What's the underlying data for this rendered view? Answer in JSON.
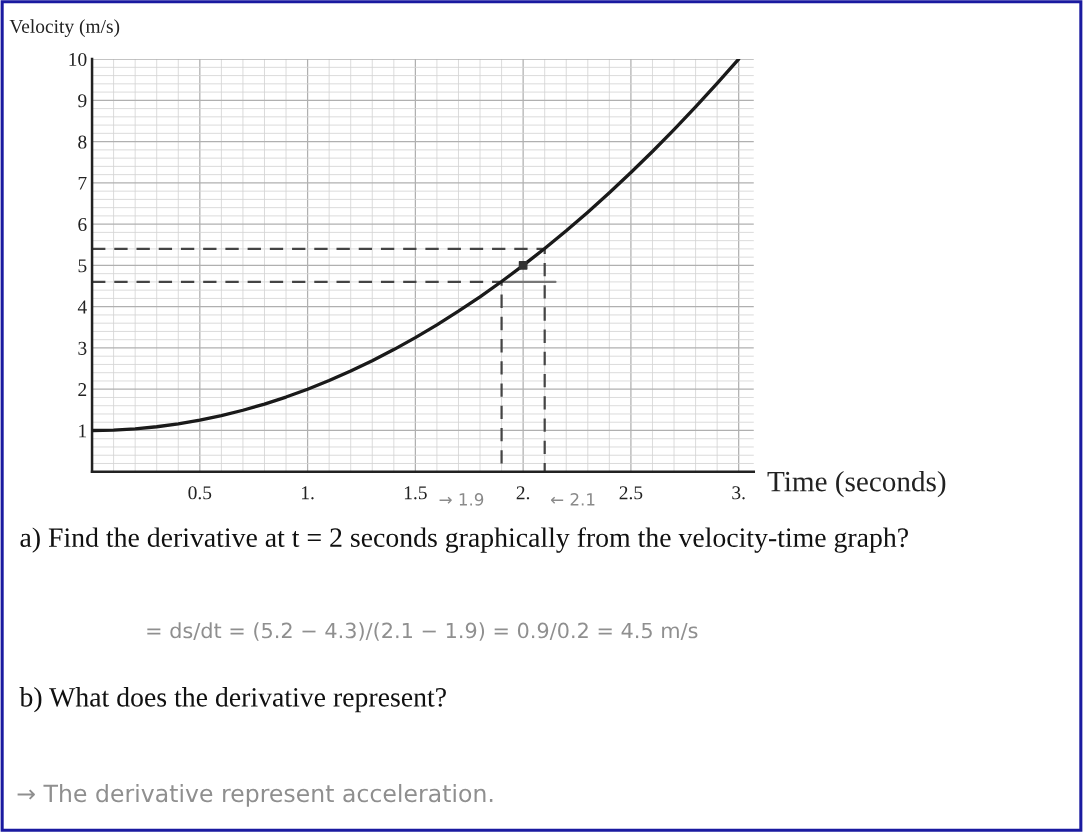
{
  "chart_data": {
    "type": "line",
    "xlabel": "Time (seconds)",
    "ylabel": "Velocity (m/s)",
    "line_style": "solid",
    "grid": true,
    "xlim": [
      0,
      3.07
    ],
    "ylim": [
      0,
      10
    ],
    "xticks": [
      0.5,
      {
        "value": 1,
        "label": "1."
      },
      1.5,
      {
        "value": 2,
        "label": "2."
      },
      2.5,
      {
        "value": 3,
        "label": "3."
      }
    ],
    "yticks": [
      1,
      2,
      3,
      4,
      5,
      6,
      7,
      8,
      9,
      10
    ],
    "series": [
      {
        "color": "#1a1a1a",
        "x": [
          0,
          0.1,
          0.2,
          0.3,
          0.4,
          0.5,
          0.6,
          0.7,
          0.8,
          0.9,
          1.0,
          1.1,
          1.2,
          1.3,
          1.4,
          1.5,
          1.6,
          1.7,
          1.8,
          1.9,
          2.0,
          2.1,
          2.2,
          2.3,
          2.4,
          2.5,
          2.6,
          2.7,
          2.8,
          2.9,
          3.0
        ],
        "values": [
          1.0,
          1.01,
          1.04,
          1.09,
          1.16,
          1.25,
          1.36,
          1.49,
          1.64,
          1.81,
          2.0,
          2.21,
          2.44,
          2.69,
          2.96,
          3.25,
          3.56,
          3.89,
          4.24,
          4.61,
          5.0,
          5.41,
          5.84,
          6.29,
          6.76,
          7.25,
          7.76,
          8.29,
          8.84,
          9.41,
          10.0
        ]
      },
      {
        "color": "#444444",
        "line_style": "dashed",
        "x": [
          0,
          2.1,
          2.1
        ],
        "values": [
          5.4,
          5.4,
          0
        ]
      },
      {
        "color": "#444444",
        "line_style": "dashed",
        "x": [
          0,
          1.9,
          1.9
        ],
        "values": [
          4.6,
          4.6,
          0
        ]
      },
      {
        "color": "#777777",
        "x": [
          1.9,
          2.15
        ],
        "values": [
          4.6,
          4.6
        ]
      },
      {
        "type": "scatter",
        "marker": "square",
        "color": "#333333",
        "x": [
          2
        ],
        "values": [
          5
        ]
      }
    ],
    "annotations": [
      "→ 1.9",
      "← 2.1",
      "a) Find the derivative at t = 2 seconds graphically from the velocity-time graph?",
      "= ds/dt = (5.2 − 4.3)/(2.1 − 1.9) = 0.9/0.2 = 4.5 m/s",
      "b) What does the derivative represent?",
      "→ The derivative represent acceleration."
    ]
  }
}
